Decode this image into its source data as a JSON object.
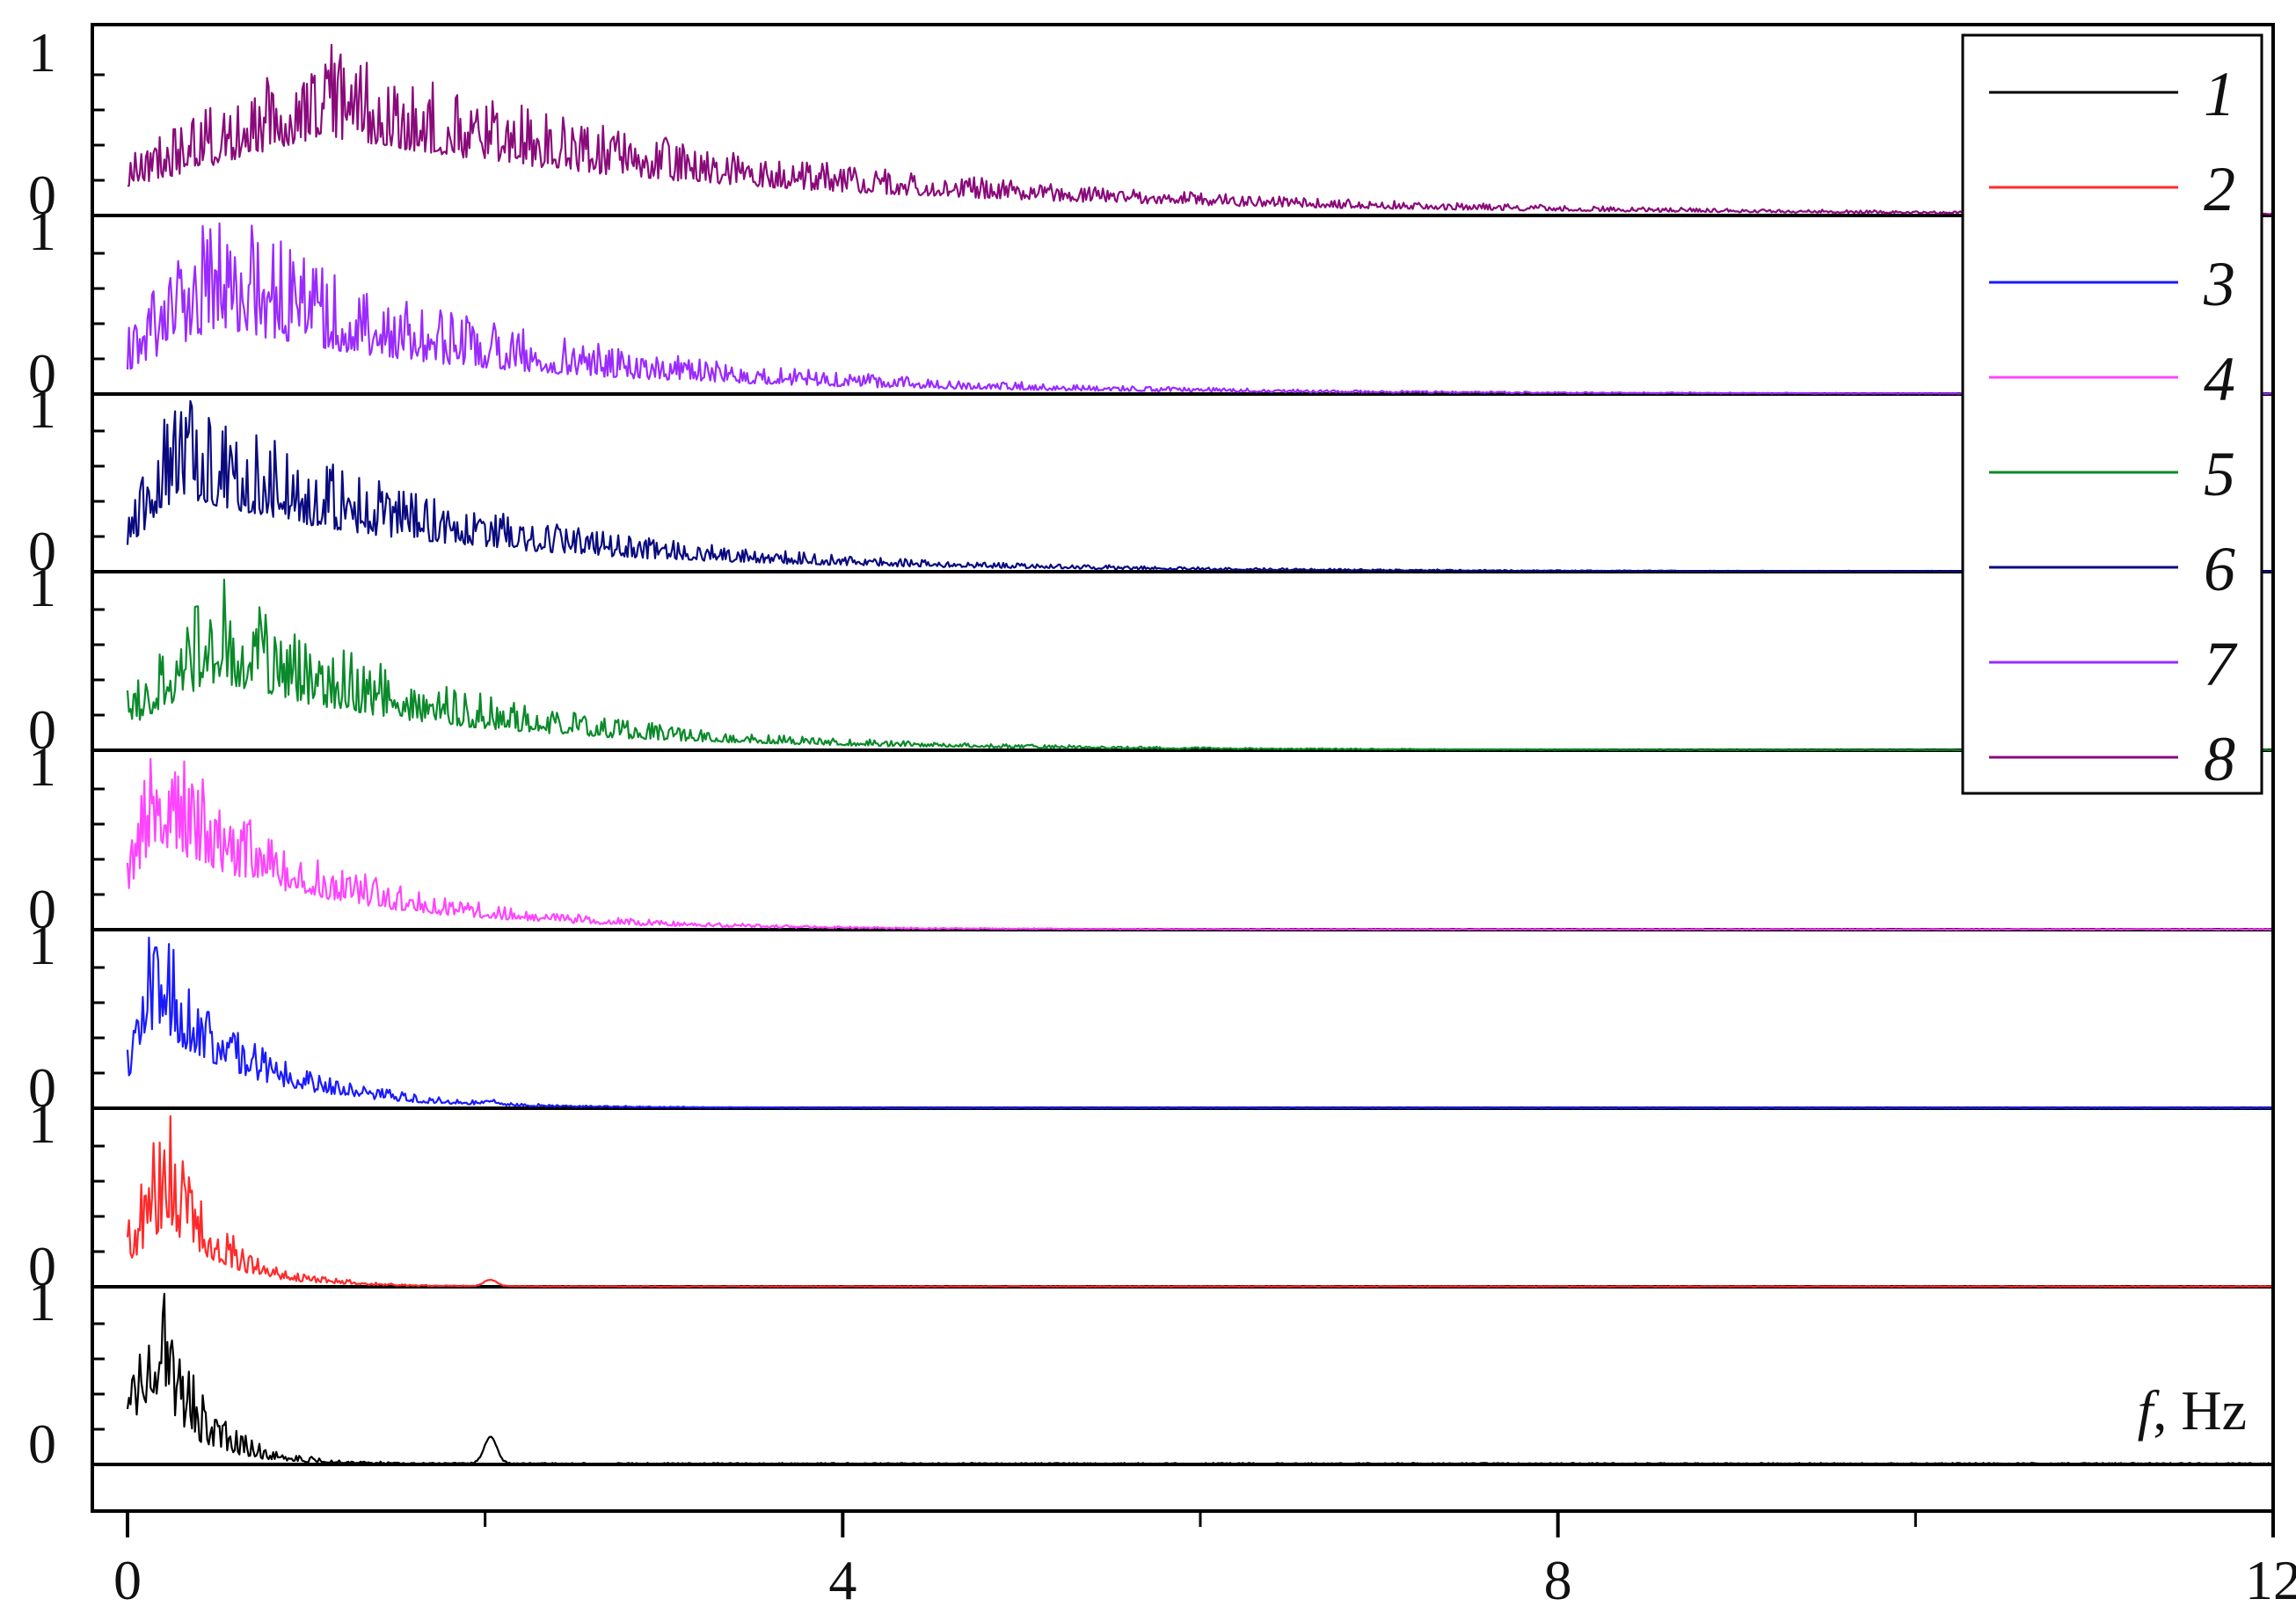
{
  "chart_data": {
    "type": "line",
    "title": "",
    "xlabel": "f, Hz",
    "xlabel_parts": {
      "symbol": "f",
      "rest": ", Hz"
    },
    "ylabel": "",
    "xlim": [
      0,
      12
    ],
    "xticks": [
      0,
      4,
      8,
      12
    ],
    "x_tick_labels": [
      "0",
      "4",
      "8",
      "12"
    ],
    "ylim_each_panel": [
      0,
      1
    ],
    "y_tick_labels": [
      "0",
      "1"
    ],
    "grid": false,
    "legend_position": "top-right",
    "stacked_panels_order_top_to_bottom": [
      "8",
      "7",
      "6",
      "5",
      "4",
      "3",
      "2",
      "1"
    ],
    "series": [
      {
        "name": "1",
        "color": "#000000",
        "peak_x": 0.13,
        "decay_x": 0.25,
        "mean_level": 0.18,
        "noise": 0.45,
        "secondary_peak_x": 2.03,
        "secondary_peak_y": 0.07,
        "tail_until_x": 12
      },
      {
        "name": "2",
        "color": "#ff2a2a",
        "peak_x": 0.22,
        "decay_x": 0.3,
        "mean_level": 0.3,
        "noise": 0.6,
        "secondary_peak_x": 2.03,
        "secondary_peak_y": 0.03,
        "tail_until_x": 12
      },
      {
        "name": "3",
        "color": "#1a1aff",
        "peak_x": 0.15,
        "decay_x": 0.55,
        "mean_level": 0.45,
        "noise": 0.65,
        "secondary_peak_x": 2.03,
        "secondary_peak_y": 0.02,
        "tail_until_x": 12
      },
      {
        "name": "4",
        "color": "#ff44ff",
        "peak_x": 0.15,
        "decay_x": 0.9,
        "mean_level": 0.5,
        "noise": 0.7,
        "secondary_peak_x": 0,
        "secondary_peak_y": 0,
        "tail_until_x": 12
      },
      {
        "name": "5",
        "color": "#0a8a2a",
        "peak_x": 0.5,
        "decay_x": 1.3,
        "mean_level": 0.45,
        "noise": 0.7,
        "secondary_peak_x": 0,
        "secondary_peak_y": 0,
        "tail_until_x": 12
      },
      {
        "name": "6",
        "color": "#0a0a80",
        "peak_x": 0.3,
        "decay_x": 1.5,
        "mean_level": 0.45,
        "noise": 0.7,
        "secondary_peak_x": 0,
        "secondary_peak_y": 0,
        "tail_until_x": 12
      },
      {
        "name": "7",
        "color": "#9a2aff",
        "peak_x": 0.5,
        "decay_x": 1.6,
        "mean_level": 0.4,
        "noise": 0.75,
        "secondary_peak_x": 0,
        "secondary_peak_y": 0,
        "tail_until_x": 12
      },
      {
        "name": "8",
        "color": "#8a0a7a",
        "peak_x": 1.1,
        "decay_x": 2.4,
        "mean_level": 0.5,
        "noise": 0.6,
        "secondary_peak_x": 0,
        "secondary_peak_y": 0,
        "tail_until_x": 12
      }
    ]
  }
}
